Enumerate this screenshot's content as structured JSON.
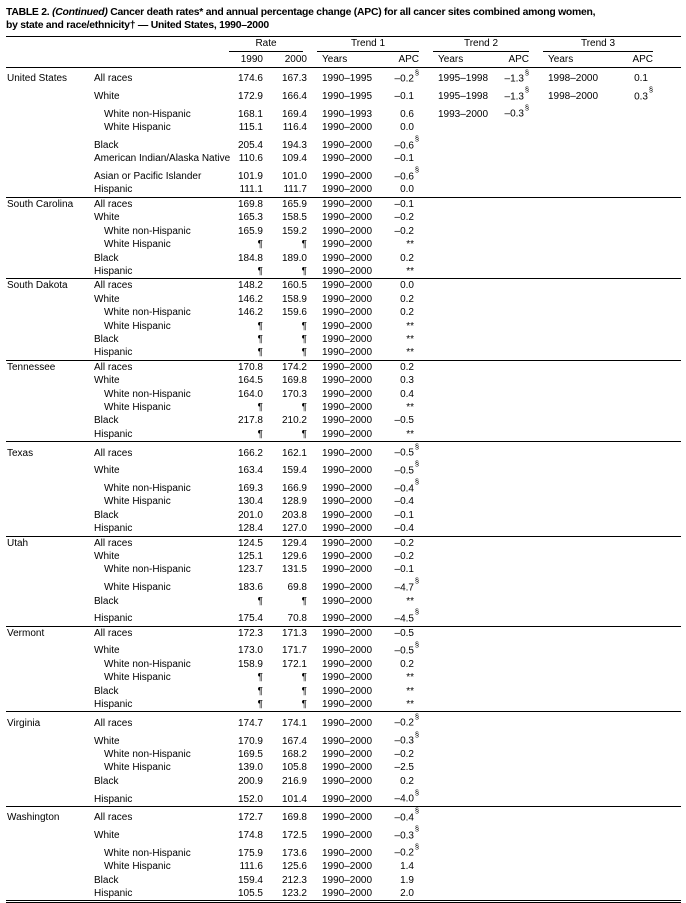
{
  "title": {
    "part1": "TABLE 2.",
    "continued": "(Continued)",
    "part2": "Cancer death rates* and annual percentage change (APC) for all cancer sites combined among women,",
    "line2": "by state and race/ethnicity† — United States, 1990–2000"
  },
  "header": {
    "groups": [
      "Rate",
      "Trend 1",
      "Trend 2",
      "Trend 3"
    ],
    "subheaders": [
      "1990",
      "2000",
      "Years",
      "APC",
      "Years",
      "APC",
      "Years",
      "APC"
    ]
  },
  "groups": [
    {
      "state": "United States",
      "rows": [
        {
          "race": "All races",
          "indent": false,
          "c": [
            "174.6",
            "167.3",
            "1990–1995",
            "–0.2§",
            "1995–1998",
            "–1.3§",
            "1998–2000",
            "0.1"
          ]
        },
        {
          "race": "White",
          "indent": false,
          "c": [
            "172.9",
            "166.4",
            "1990–1995",
            "–0.1",
            "1995–1998",
            "–1.3§",
            "1998–2000",
            "0.3§"
          ]
        },
        {
          "race": "White non-Hispanic",
          "indent": true,
          "c": [
            "168.1",
            "169.4",
            "1990–1993",
            "0.6",
            "1993–2000",
            "–0.3§",
            "",
            ""
          ]
        },
        {
          "race": "White Hispanic",
          "indent": true,
          "c": [
            "115.1",
            "116.4",
            "1990–2000",
            "0.0",
            "",
            "",
            "",
            ""
          ]
        },
        {
          "race": "Black",
          "indent": false,
          "c": [
            "205.4",
            "194.3",
            "1990–2000",
            "–0.6§",
            "",
            "",
            "",
            ""
          ]
        },
        {
          "race": "American Indian/Alaska Native",
          "indent": false,
          "c": [
            "110.6",
            "109.4",
            "1990–2000",
            "–0.1",
            "",
            "",
            "",
            ""
          ]
        },
        {
          "race": "Asian or Pacific Islander",
          "indent": false,
          "c": [
            "101.9",
            "101.0",
            "1990–2000",
            "–0.6§",
            "",
            "",
            "",
            ""
          ]
        },
        {
          "race": "Hispanic",
          "indent": false,
          "c": [
            "111.1",
            "111.7",
            "1990–2000",
            "0.0",
            "",
            "",
            "",
            ""
          ]
        }
      ]
    },
    {
      "state": "South Carolina",
      "rows": [
        {
          "race": "All races",
          "indent": false,
          "c": [
            "169.8",
            "165.9",
            "1990–2000",
            "–0.1",
            "",
            "",
            "",
            ""
          ]
        },
        {
          "race": "White",
          "indent": false,
          "c": [
            "165.3",
            "158.5",
            "1990–2000",
            "–0.2",
            "",
            "",
            "",
            ""
          ]
        },
        {
          "race": "White non-Hispanic",
          "indent": true,
          "c": [
            "165.9",
            "159.2",
            "1990–2000",
            "–0.2",
            "",
            "",
            "",
            ""
          ]
        },
        {
          "race": "White Hispanic",
          "indent": true,
          "c": [
            "¶",
            "¶",
            "1990–2000",
            "**",
            "",
            "",
            "",
            ""
          ]
        },
        {
          "race": "Black",
          "indent": false,
          "c": [
            "184.8",
            "189.0",
            "1990–2000",
            "0.2",
            "",
            "",
            "",
            ""
          ]
        },
        {
          "race": "Hispanic",
          "indent": false,
          "c": [
            "¶",
            "¶",
            "1990–2000",
            "**",
            "",
            "",
            "",
            ""
          ]
        }
      ]
    },
    {
      "state": "South Dakota",
      "rows": [
        {
          "race": "All races",
          "indent": false,
          "c": [
            "148.2",
            "160.5",
            "1990–2000",
            "0.0",
            "",
            "",
            "",
            ""
          ]
        },
        {
          "race": "White",
          "indent": false,
          "c": [
            "146.2",
            "158.9",
            "1990–2000",
            "0.2",
            "",
            "",
            "",
            ""
          ]
        },
        {
          "race": "White non-Hispanic",
          "indent": true,
          "c": [
            "146.2",
            "159.6",
            "1990–2000",
            "0.2",
            "",
            "",
            "",
            ""
          ]
        },
        {
          "race": "White Hispanic",
          "indent": true,
          "c": [
            "¶",
            "¶",
            "1990–2000",
            "**",
            "",
            "",
            "",
            ""
          ]
        },
        {
          "race": "Black",
          "indent": false,
          "c": [
            "¶",
            "¶",
            "1990–2000",
            "**",
            "",
            "",
            "",
            ""
          ]
        },
        {
          "race": "Hispanic",
          "indent": false,
          "c": [
            "¶",
            "¶",
            "1990–2000",
            "**",
            "",
            "",
            "",
            ""
          ]
        }
      ]
    },
    {
      "state": "Tennessee",
      "rows": [
        {
          "race": "All races",
          "indent": false,
          "c": [
            "170.8",
            "174.2",
            "1990–2000",
            "0.2",
            "",
            "",
            "",
            ""
          ]
        },
        {
          "race": "White",
          "indent": false,
          "c": [
            "164.5",
            "169.8",
            "1990–2000",
            "0.3",
            "",
            "",
            "",
            ""
          ]
        },
        {
          "race": "White non-Hispanic",
          "indent": true,
          "c": [
            "164.0",
            "170.3",
            "1990–2000",
            "0.4",
            "",
            "",
            "",
            ""
          ]
        },
        {
          "race": "White Hispanic",
          "indent": true,
          "c": [
            "¶",
            "¶",
            "1990–2000",
            "**",
            "",
            "",
            "",
            ""
          ]
        },
        {
          "race": "Black",
          "indent": false,
          "c": [
            "217.8",
            "210.2",
            "1990–2000",
            "–0.5",
            "",
            "",
            "",
            ""
          ]
        },
        {
          "race": "Hispanic",
          "indent": false,
          "c": [
            "¶",
            "¶",
            "1990–2000",
            "**",
            "",
            "",
            "",
            ""
          ]
        }
      ]
    },
    {
      "state": "Texas",
      "rows": [
        {
          "race": "All races",
          "indent": false,
          "c": [
            "166.2",
            "162.1",
            "1990–2000",
            "–0.5§",
            "",
            "",
            "",
            ""
          ]
        },
        {
          "race": "White",
          "indent": false,
          "c": [
            "163.4",
            "159.4",
            "1990–2000",
            "–0.5§",
            "",
            "",
            "",
            ""
          ]
        },
        {
          "race": "White non-Hispanic",
          "indent": true,
          "c": [
            "169.3",
            "166.9",
            "1990–2000",
            "–0.4§",
            "",
            "",
            "",
            ""
          ]
        },
        {
          "race": "White Hispanic",
          "indent": true,
          "c": [
            "130.4",
            "128.9",
            "1990–2000",
            "–0.4",
            "",
            "",
            "",
            ""
          ]
        },
        {
          "race": "Black",
          "indent": false,
          "c": [
            "201.0",
            "203.8",
            "1990–2000",
            "–0.1",
            "",
            "",
            "",
            ""
          ]
        },
        {
          "race": "Hispanic",
          "indent": false,
          "c": [
            "128.4",
            "127.0",
            "1990–2000",
            "–0.4",
            "",
            "",
            "",
            ""
          ]
        }
      ]
    },
    {
      "state": "Utah",
      "rows": [
        {
          "race": "All races",
          "indent": false,
          "c": [
            "124.5",
            "129.4",
            "1990–2000",
            "–0.2",
            "",
            "",
            "",
            ""
          ]
        },
        {
          "race": "White",
          "indent": false,
          "c": [
            "125.1",
            "129.6",
            "1990–2000",
            "–0.2",
            "",
            "",
            "",
            ""
          ]
        },
        {
          "race": "White non-Hispanic",
          "indent": true,
          "c": [
            "123.7",
            "131.5",
            "1990–2000",
            "–0.1",
            "",
            "",
            "",
            ""
          ]
        },
        {
          "race": "White Hispanic",
          "indent": true,
          "c": [
            "183.6",
            "69.8",
            "1990–2000",
            "–4.7§",
            "",
            "",
            "",
            ""
          ]
        },
        {
          "race": "Black",
          "indent": false,
          "c": [
            "¶",
            "¶",
            "1990–2000",
            "**",
            "",
            "",
            "",
            ""
          ]
        },
        {
          "race": "Hispanic",
          "indent": false,
          "c": [
            "175.4",
            "70.8",
            "1990–2000",
            "–4.5§",
            "",
            "",
            "",
            ""
          ]
        }
      ]
    },
    {
      "state": "Vermont",
      "rows": [
        {
          "race": "All races",
          "indent": false,
          "c": [
            "172.3",
            "171.3",
            "1990–2000",
            "–0.5",
            "",
            "",
            "",
            ""
          ]
        },
        {
          "race": "White",
          "indent": false,
          "c": [
            "173.0",
            "171.7",
            "1990–2000",
            "–0.5§",
            "",
            "",
            "",
            ""
          ]
        },
        {
          "race": "White non-Hispanic",
          "indent": true,
          "c": [
            "158.9",
            "172.1",
            "1990–2000",
            "0.2",
            "",
            "",
            "",
            ""
          ]
        },
        {
          "race": "White Hispanic",
          "indent": true,
          "c": [
            "¶",
            "¶",
            "1990–2000",
            "**",
            "",
            "",
            "",
            ""
          ]
        },
        {
          "race": "Black",
          "indent": false,
          "c": [
            "¶",
            "¶",
            "1990–2000",
            "**",
            "",
            "",
            "",
            ""
          ]
        },
        {
          "race": "Hispanic",
          "indent": false,
          "c": [
            "¶",
            "¶",
            "1990–2000",
            "**",
            "",
            "",
            "",
            ""
          ]
        }
      ]
    },
    {
      "state": "Virginia",
      "rows": [
        {
          "race": "All races",
          "indent": false,
          "c": [
            "174.7",
            "174.1",
            "1990–2000",
            "–0.2§",
            "",
            "",
            "",
            ""
          ]
        },
        {
          "race": "White",
          "indent": false,
          "c": [
            "170.9",
            "167.4",
            "1990–2000",
            "–0.3§",
            "",
            "",
            "",
            ""
          ]
        },
        {
          "race": "White non-Hispanic",
          "indent": true,
          "c": [
            "169.5",
            "168.2",
            "1990–2000",
            "–0.2",
            "",
            "",
            "",
            ""
          ]
        },
        {
          "race": "White Hispanic",
          "indent": true,
          "c": [
            "139.0",
            "105.8",
            "1990–2000",
            "–2.5",
            "",
            "",
            "",
            ""
          ]
        },
        {
          "race": "Black",
          "indent": false,
          "c": [
            "200.9",
            "216.9",
            "1990–2000",
            "0.2",
            "",
            "",
            "",
            ""
          ]
        },
        {
          "race": "Hispanic",
          "indent": false,
          "c": [
            "152.0",
            "101.4",
            "1990–2000",
            "–4.0§",
            "",
            "",
            "",
            ""
          ]
        }
      ]
    },
    {
      "state": "Washington",
      "rows": [
        {
          "race": "All races",
          "indent": false,
          "c": [
            "172.7",
            "169.8",
            "1990–2000",
            "–0.4§",
            "",
            "",
            "",
            ""
          ]
        },
        {
          "race": "White",
          "indent": false,
          "c": [
            "174.8",
            "172.5",
            "1990–2000",
            "–0.3§",
            "",
            "",
            "",
            ""
          ]
        },
        {
          "race": "White non-Hispanic",
          "indent": true,
          "c": [
            "175.9",
            "173.6",
            "1990–2000",
            "–0.2§",
            "",
            "",
            "",
            ""
          ]
        },
        {
          "race": "White Hispanic",
          "indent": true,
          "c": [
            "111.6",
            "125.6",
            "1990–2000",
            "1.4",
            "",
            "",
            "",
            ""
          ]
        },
        {
          "race": "Black",
          "indent": false,
          "c": [
            "159.4",
            "212.3",
            "1990–2000",
            "1.9",
            "",
            "",
            "",
            ""
          ]
        },
        {
          "race": "Hispanic",
          "indent": false,
          "c": [
            "105.5",
            "123.2",
            "1990–2000",
            "2.0",
            "",
            "",
            "",
            ""
          ]
        }
      ]
    }
  ]
}
